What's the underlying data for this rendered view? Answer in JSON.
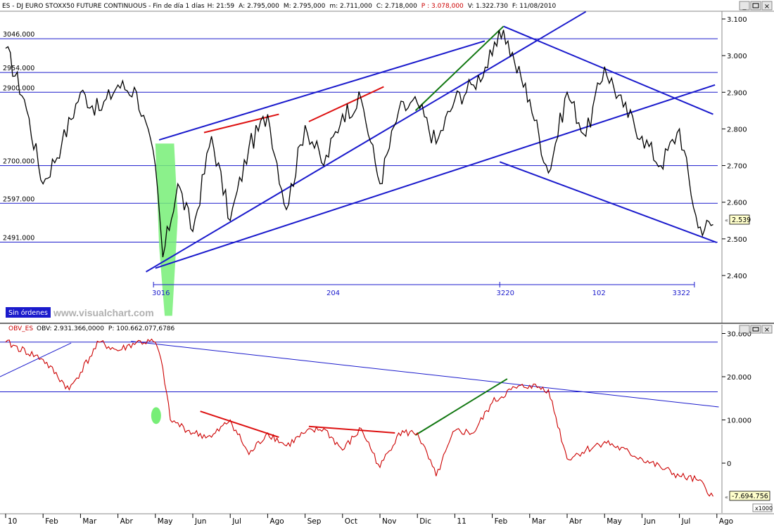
{
  "price_panel": {
    "header": {
      "ticker": "ES",
      "description": "DJ EURO STOXX50 FUTURE CONTINUOUS",
      "bar_info": "Fin de día 1 días",
      "time": "H: 21:59",
      "open": "A: 2.795,000",
      "max": "M: 2.795,000",
      "min": "m: 2.711,000",
      "close": "C: 2.718,000",
      "cursor": "P : 3.078,000",
      "volume": "V: 1.322.730",
      "date": "F: 11/08/2010"
    },
    "badge": "Sin órdenes",
    "watermark": "www.visualchart.com",
    "last_price": "2.539"
  },
  "obv_panel": {
    "header": {
      "name": "OBV_ES",
      "value_label": "OBV: 2.931.366,0000",
      "cursor": "P: 100.662.077,6786"
    },
    "last_value": "-7.694.756",
    "multiplier": "x1000"
  },
  "colors": {
    "price_line": "#000000",
    "obv_line": "#cc0000",
    "trend_blue": "#1a1acc",
    "trend_red": "#dd1111",
    "trend_green": "#117711",
    "highlight": "#77ee77"
  },
  "chart_data": [
    {
      "type": "line",
      "title": "",
      "y_ticks": [
        "3.100",
        "3.000",
        "2.900",
        "2.800",
        "2.700",
        "2.600",
        "2.500",
        "2.400"
      ],
      "ylim": [
        2300,
        3120
      ],
      "x_tick_labels": [
        "10",
        "Feb",
        "Mar",
        "Abr",
        "May",
        "Jun",
        "Jul",
        "Ago",
        "Sep",
        "Oct",
        "Nov",
        "Dic",
        "11",
        "Feb",
        "Mar",
        "Abr",
        "May",
        "Jun",
        "Jul",
        "Ago"
      ],
      "x": [
        0,
        0.5,
        1,
        1.5,
        2,
        2.5,
        3,
        3.5,
        4,
        4.2,
        4.6,
        5,
        5.5,
        6,
        6.5,
        7,
        7.5,
        8,
        8.5,
        9,
        9.5,
        10,
        10.5,
        11,
        11.5,
        12,
        12.5,
        13,
        13.3,
        13.6,
        14,
        14.5,
        15,
        15.5,
        16,
        16.5,
        17,
        17.5,
        18,
        18.5,
        18.9
      ],
      "series": [
        {
          "values": [
            3020,
            2880,
            2650,
            2760,
            2900,
            2850,
            2920,
            2900,
            2700,
            2450,
            2650,
            2520,
            2780,
            2550,
            2750,
            2840,
            2580,
            2810,
            2700,
            2840,
            2880,
            2650,
            2850,
            2870,
            2760,
            2880,
            2920,
            3000,
            3070,
            2980,
            2880,
            2680,
            2900,
            2780,
            2970,
            2860,
            2780,
            2700,
            2800,
            2530,
            2539
          ]
        }
      ],
      "horizontal_levels": [
        {
          "label": "3046.000",
          "value": 3046
        },
        {
          "label": "2954.000",
          "value": 2954
        },
        {
          "label": "2900.000",
          "value": 2900
        },
        {
          "label": "2700.000",
          "value": 2700
        },
        {
          "label": "2597.000",
          "value": 2597
        },
        {
          "label": "2491.000",
          "value": 2491
        }
      ],
      "cycle_labels": [
        "3016",
        "204",
        "3220",
        "102",
        "3322"
      ]
    },
    {
      "type": "line",
      "title": "",
      "y_ticks": [
        "30.000",
        "20.000",
        "10.000",
        "0"
      ],
      "ylim": [
        -9000,
        31000
      ],
      "x": [
        0,
        1,
        1.7,
        2.5,
        3,
        3.5,
        4,
        4.2,
        4.4,
        5,
        5.5,
        6,
        6.5,
        7,
        7.5,
        8,
        8.5,
        9,
        9.5,
        10,
        10.5,
        11,
        11.5,
        12,
        12.5,
        13,
        13.5,
        14,
        14.5,
        15,
        16,
        17,
        17.5,
        18,
        18.5,
        18.9
      ],
      "series": [
        {
          "name": "OBV_ES",
          "values": [
            28000,
            24000,
            17000,
            28000,
            26000,
            28000,
            28000,
            22000,
            10000,
            7000,
            6000,
            10000,
            2000,
            7000,
            4000,
            7000,
            8000,
            3000,
            8000,
            -1000,
            7000,
            7000,
            -3000,
            7500,
            7000,
            14000,
            17000,
            18000,
            17000,
            1000,
            5000,
            1000,
            -1000,
            -3000,
            -4000,
            -7695
          ]
        }
      ]
    }
  ]
}
